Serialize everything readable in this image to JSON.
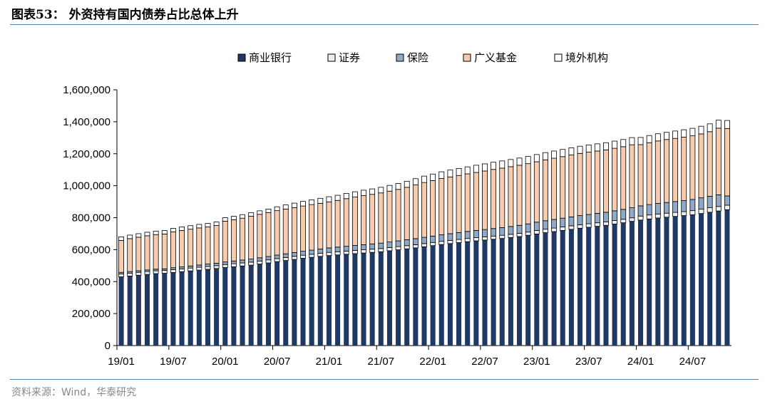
{
  "figure": {
    "title": "图表53：  外资持有国内债券占比总体上升",
    "source": "资料来源：Wind，华泰研究"
  },
  "chart_data": {
    "type": "bar",
    "stacked": true,
    "title": "外资持有国内债券占比总体上升",
    "xlabel": "",
    "ylabel": "",
    "ylim": [
      0,
      1600000
    ],
    "yticks": [
      0,
      200000,
      400000,
      600000,
      800000,
      1000000,
      1200000,
      1400000,
      1600000
    ],
    "ytick_labels": [
      "0",
      "200,000",
      "400,000",
      "600,000",
      "800,000",
      "1,000,000",
      "1,200,000",
      "1,400,000",
      "1,600,000"
    ],
    "xtick_labels": [
      "19/01",
      "19/07",
      "20/01",
      "20/07",
      "21/01",
      "21/07",
      "22/01",
      "22/07",
      "23/01",
      "23/07",
      "24/01",
      "24/07"
    ],
    "xtick_every": 6,
    "legend_position": "top",
    "grid": false,
    "categories": [
      "19/01",
      "19/02",
      "19/03",
      "19/04",
      "19/05",
      "19/06",
      "19/07",
      "19/08",
      "19/09",
      "19/10",
      "19/11",
      "19/12",
      "20/01",
      "20/02",
      "20/03",
      "20/04",
      "20/05",
      "20/06",
      "20/07",
      "20/08",
      "20/09",
      "20/10",
      "20/11",
      "20/12",
      "21/01",
      "21/02",
      "21/03",
      "21/04",
      "21/05",
      "21/06",
      "21/07",
      "21/08",
      "21/09",
      "21/10",
      "21/11",
      "21/12",
      "22/01",
      "22/02",
      "22/03",
      "22/04",
      "22/05",
      "22/06",
      "22/07",
      "22/08",
      "22/09",
      "22/10",
      "22/11",
      "22/12",
      "23/01",
      "23/02",
      "23/03",
      "23/04",
      "23/05",
      "23/06",
      "23/07",
      "23/08",
      "23/09",
      "23/10",
      "23/11",
      "23/12",
      "24/01",
      "24/02",
      "24/03",
      "24/04",
      "24/05",
      "24/06",
      "24/07",
      "24/08",
      "24/09",
      "24/10",
      "24/11"
    ],
    "series": [
      {
        "name": "商业银行",
        "color": "#1f3864",
        "values": [
          430000,
          435000,
          440000,
          445000,
          450000,
          452000,
          457000,
          462000,
          467000,
          472000,
          477000,
          482000,
          488000,
          493000,
          498000,
          503000,
          510000,
          517000,
          525000,
          532000,
          539000,
          546000,
          552000,
          558000,
          563000,
          567000,
          571000,
          575000,
          579000,
          583000,
          587000,
          593000,
          599000,
          605000,
          611000,
          618000,
          625000,
          632000,
          638000,
          644000,
          650000,
          655000,
          660000,
          665000,
          670000,
          676000,
          682000,
          690000,
          698000,
          706000,
          713000,
          720000,
          727000,
          734000,
          740000,
          746000,
          752000,
          760000,
          768000,
          777000,
          785000,
          792000,
          798000,
          803000,
          808000,
          813000,
          818000,
          826000,
          834000,
          842000,
          850000
        ]
      },
      {
        "name": "证券",
        "color": "#eeeeee",
        "values": [
          18000,
          18000,
          18000,
          18000,
          18000,
          18000,
          18000,
          18000,
          18000,
          18000,
          18000,
          18000,
          19000,
          19000,
          19000,
          19000,
          19000,
          19000,
          19000,
          19000,
          19000,
          19000,
          19000,
          19000,
          20000,
          20000,
          20000,
          20000,
          20000,
          20000,
          20000,
          20000,
          20000,
          20000,
          20000,
          20000,
          20000,
          20000,
          20000,
          20000,
          20000,
          20000,
          20000,
          20000,
          20000,
          20000,
          20000,
          20000,
          22000,
          22000,
          22000,
          22000,
          22000,
          22000,
          22000,
          22000,
          22000,
          22000,
          22000,
          22000,
          25000,
          25000,
          25000,
          25000,
          25000,
          25000,
          26000,
          27000,
          28000,
          28000,
          28000
        ]
      },
      {
        "name": "保险",
        "color": "#8eaac8",
        "values": [
          10000,
          10000,
          10000,
          10000,
          10000,
          10000,
          12000,
          12000,
          13000,
          14000,
          15000,
          15000,
          16000,
          17000,
          18000,
          19000,
          20000,
          21000,
          22000,
          23000,
          24000,
          25000,
          26000,
          27000,
          28000,
          29000,
          30000,
          31000,
          32000,
          33000,
          34000,
          35000,
          36000,
          37000,
          38000,
          39000,
          40000,
          41000,
          42000,
          43000,
          44000,
          45000,
          46000,
          47000,
          48000,
          49000,
          50000,
          51000,
          52000,
          53000,
          54000,
          55000,
          56000,
          57000,
          58000,
          59000,
          60000,
          61000,
          62000,
          63000,
          64000,
          65000,
          66000,
          67000,
          68000,
          69000,
          70000,
          71000,
          72000,
          73000,
          58000
        ]
      },
      {
        "name": "广义基金",
        "color": "#f8cbad",
        "values": [
          200000,
          206000,
          210000,
          214000,
          216000,
          218000,
          224000,
          228000,
          230000,
          232000,
          232000,
          236000,
          255000,
          258000,
          262000,
          268000,
          272000,
          275000,
          278000,
          280000,
          281000,
          283000,
          285000,
          286000,
          288000,
          292000,
          298000,
          303000,
          307000,
          310000,
          314000,
          318000,
          322000,
          328000,
          336000,
          343000,
          347000,
          352000,
          355000,
          357000,
          360000,
          363000,
          366000,
          370000,
          372000,
          374000,
          376000,
          377000,
          378000,
          381000,
          383000,
          385000,
          387000,
          389000,
          390000,
          390000,
          390000,
          391000,
          392000,
          394000,
          383000,
          387000,
          391000,
          394000,
          395000,
          397000,
          398000,
          400000,
          404000,
          417000,
          422000
        ]
      },
      {
        "name": "境外机构",
        "color": "#ffffff",
        "values": [
          22000,
          22000,
          22000,
          22000,
          22000,
          22000,
          22000,
          22000,
          22000,
          22000,
          22000,
          22000,
          22000,
          22000,
          22000,
          22000,
          22000,
          22000,
          24000,
          26000,
          28000,
          29000,
          30000,
          31000,
          32000,
          32000,
          33000,
          33000,
          34000,
          34000,
          35000,
          36000,
          37000,
          38000,
          39000,
          40000,
          41000,
          42000,
          43000,
          44000,
          44000,
          45000,
          45000,
          45000,
          45000,
          45000,
          45000,
          45000,
          45000,
          45000,
          45000,
          45000,
          45000,
          45000,
          45000,
          45000,
          45000,
          45000,
          45000,
          45000,
          45000,
          45000,
          45000,
          45000,
          46000,
          46000,
          47000,
          48000,
          49000,
          50000,
          50000
        ]
      }
    ]
  }
}
